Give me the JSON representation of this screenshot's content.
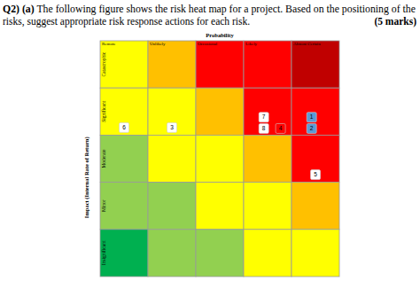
{
  "question": {
    "number": "Q2) (a)",
    "lines": [
      "The following figure shows the risk heat map for a project. Based on the positioning of the",
      "risks, suggest appropriate risk response actions for each risk."
    ],
    "marks": "(5 marks)"
  },
  "chart_data": {
    "type": "heatmap",
    "xlabel": "Probability",
    "ylabel": "Impact (Internal Rate of Return)",
    "categories": [
      "Remote",
      "Unlikely",
      "Occasional",
      "Likely",
      "Almost Certain"
    ],
    "rows": [
      "Catastrophic",
      "Significant",
      "Moderate",
      "Minor",
      "Insignificant"
    ],
    "cell_colors": [
      [
        "#ffff00",
        "#ffc000",
        "#ff0000",
        "#ff0000",
        "#c00000"
      ],
      [
        "#ffff00",
        "#ffff00",
        "#ffc000",
        "#ff0000",
        "#ff0000"
      ],
      [
        "#92d050",
        "#ffff00",
        "#ffff00",
        "#ffc000",
        "#ff0000"
      ],
      [
        "#92d050",
        "#92d050",
        "#ffff00",
        "#ffff00",
        "#ffc000"
      ],
      [
        "#00b050",
        "#92d050",
        "#92d050",
        "#ffff00",
        "#ffff00"
      ]
    ],
    "risks": [
      {
        "label": "6",
        "probability": "Remote",
        "impact": "Significant",
        "color": "#ffffff"
      },
      {
        "label": "3",
        "probability": "Unlikely",
        "impact": "Significant",
        "color": "#ffffff"
      },
      {
        "label": "7",
        "probability": "Likely",
        "impact": "Significant",
        "color": "#ffffff"
      },
      {
        "label": "8",
        "probability": "Likely",
        "impact": "Significant",
        "color": "#ffffff"
      },
      {
        "label": "4",
        "probability": "Likely",
        "impact": "Significant",
        "color": "#ff0000"
      },
      {
        "label": "1",
        "probability": "Almost Certain",
        "impact": "Significant",
        "color": "#5b9bd5"
      },
      {
        "label": "2",
        "probability": "Almost Certain",
        "impact": "Significant",
        "color": "#5b9bd5"
      },
      {
        "label": "5",
        "probability": "Almost Certain",
        "impact": "Moderate",
        "color": "#ffffff"
      }
    ]
  }
}
